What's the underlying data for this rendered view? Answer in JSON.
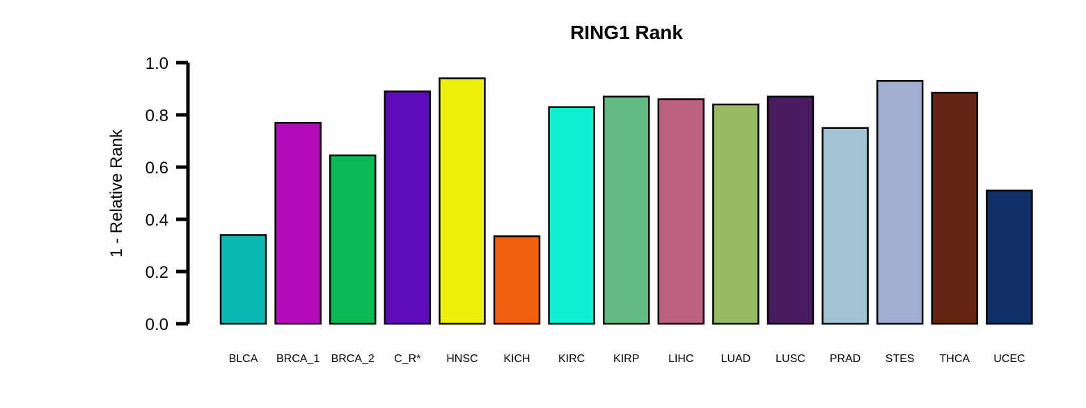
{
  "chart_data": {
    "type": "bar",
    "title": "RING1 Rank",
    "xlabel": "",
    "ylabel": "1 - Relative Rank",
    "ylim": [
      0,
      1
    ],
    "yticks": [
      "0.0",
      "0.2",
      "0.4",
      "0.6",
      "0.8",
      "1.0"
    ],
    "ytick_values": [
      0,
      0.2,
      0.4,
      0.6,
      0.8,
      1.0
    ],
    "grid": false,
    "legend": "none",
    "categories": [
      "BLCA",
      "BRCA_1",
      "BRCA_2",
      "C_R*",
      "HNSC",
      "KICH",
      "KIRC",
      "KIRP",
      "LIHC",
      "LUAD",
      "LUSC",
      "PRAD",
      "STES",
      "THCA",
      "UCEC"
    ],
    "values": [
      0.34,
      0.77,
      0.645,
      0.89,
      0.94,
      0.335,
      0.83,
      0.87,
      0.86,
      0.84,
      0.87,
      0.75,
      0.93,
      0.885,
      0.51
    ],
    "colors": [
      "#0bb9b4",
      "#b40cbb",
      "#0ab955",
      "#5f0ab9",
      "#eef00c",
      "#f0600f",
      "#0ff0d2",
      "#62bb80",
      "#bc6281",
      "#97bb62",
      "#481c5f",
      "#a1c5d3",
      "#a1aed3",
      "#662512",
      "#103167"
    ],
    "bar_edge_color": "#000000"
  }
}
